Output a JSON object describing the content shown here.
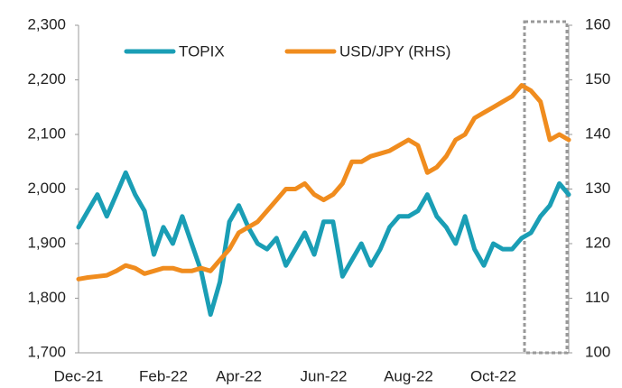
{
  "chart_data": {
    "type": "line",
    "categories": [
      "Dec-21",
      null,
      null,
      null,
      null,
      null,
      null,
      null,
      null,
      "Feb-22",
      null,
      null,
      null,
      null,
      null,
      null,
      null,
      "Apr-22",
      null,
      null,
      null,
      null,
      null,
      null,
      null,
      null,
      "Jun-22",
      null,
      null,
      null,
      null,
      null,
      null,
      null,
      null,
      "Aug-22",
      null,
      null,
      null,
      null,
      null,
      null,
      null,
      null,
      "Oct-22",
      null,
      null,
      null,
      null,
      null,
      null,
      null,
      null
    ],
    "series": [
      {
        "name": "TOPIX",
        "color": "#1a9eb5",
        "values": [
          1930,
          1960,
          1990,
          1950,
          1990,
          2030,
          1990,
          1960,
          1880,
          1930,
          1900,
          1950,
          1900,
          1850,
          1770,
          1830,
          1940,
          1970,
          1930,
          1900,
          1890,
          1910,
          1860,
          1890,
          1920,
          1880,
          1940,
          1940,
          1840,
          1870,
          1900,
          1860,
          1890,
          1930,
          1950,
          1950,
          1960,
          1990,
          1950,
          1930,
          1900,
          1950,
          1890,
          1860,
          1900,
          1890,
          1890,
          1910,
          1920,
          1950,
          1970,
          2010,
          1990
        ]
      },
      {
        "name": "USD/JPY (RHS)",
        "color": "#f08c1e",
        "axis": "y2",
        "values": [
          113.5,
          113.8,
          114,
          114.2,
          115,
          116,
          115.5,
          114.5,
          115,
          115.5,
          115.5,
          115,
          115,
          115.5,
          115,
          117,
          119,
          122,
          123,
          124,
          126,
          128,
          130,
          130,
          131,
          129,
          128,
          129,
          131,
          135,
          135,
          136,
          136.5,
          137,
          138,
          139,
          138,
          133,
          134,
          136,
          139,
          140,
          143,
          144,
          145,
          146,
          147,
          149,
          148,
          146,
          139,
          140,
          139
        ]
      }
    ],
    "ylim": [
      1700,
      2300
    ],
    "yticks": [
      {
        "value": 1700,
        "label": "1,700"
      },
      {
        "value": 1800,
        "label": "1,800"
      },
      {
        "value": 1900,
        "label": "1,900"
      },
      {
        "value": 2000,
        "label": "2,000"
      },
      {
        "value": 2100,
        "label": "2,100"
      },
      {
        "value": 2200,
        "label": "2,200"
      },
      {
        "value": 2300,
        "label": "2,300"
      }
    ],
    "y2lim": [
      100,
      160
    ],
    "y2ticks": [
      100,
      110,
      120,
      130,
      140,
      150,
      160
    ],
    "grid": false,
    "legend": "top"
  }
}
